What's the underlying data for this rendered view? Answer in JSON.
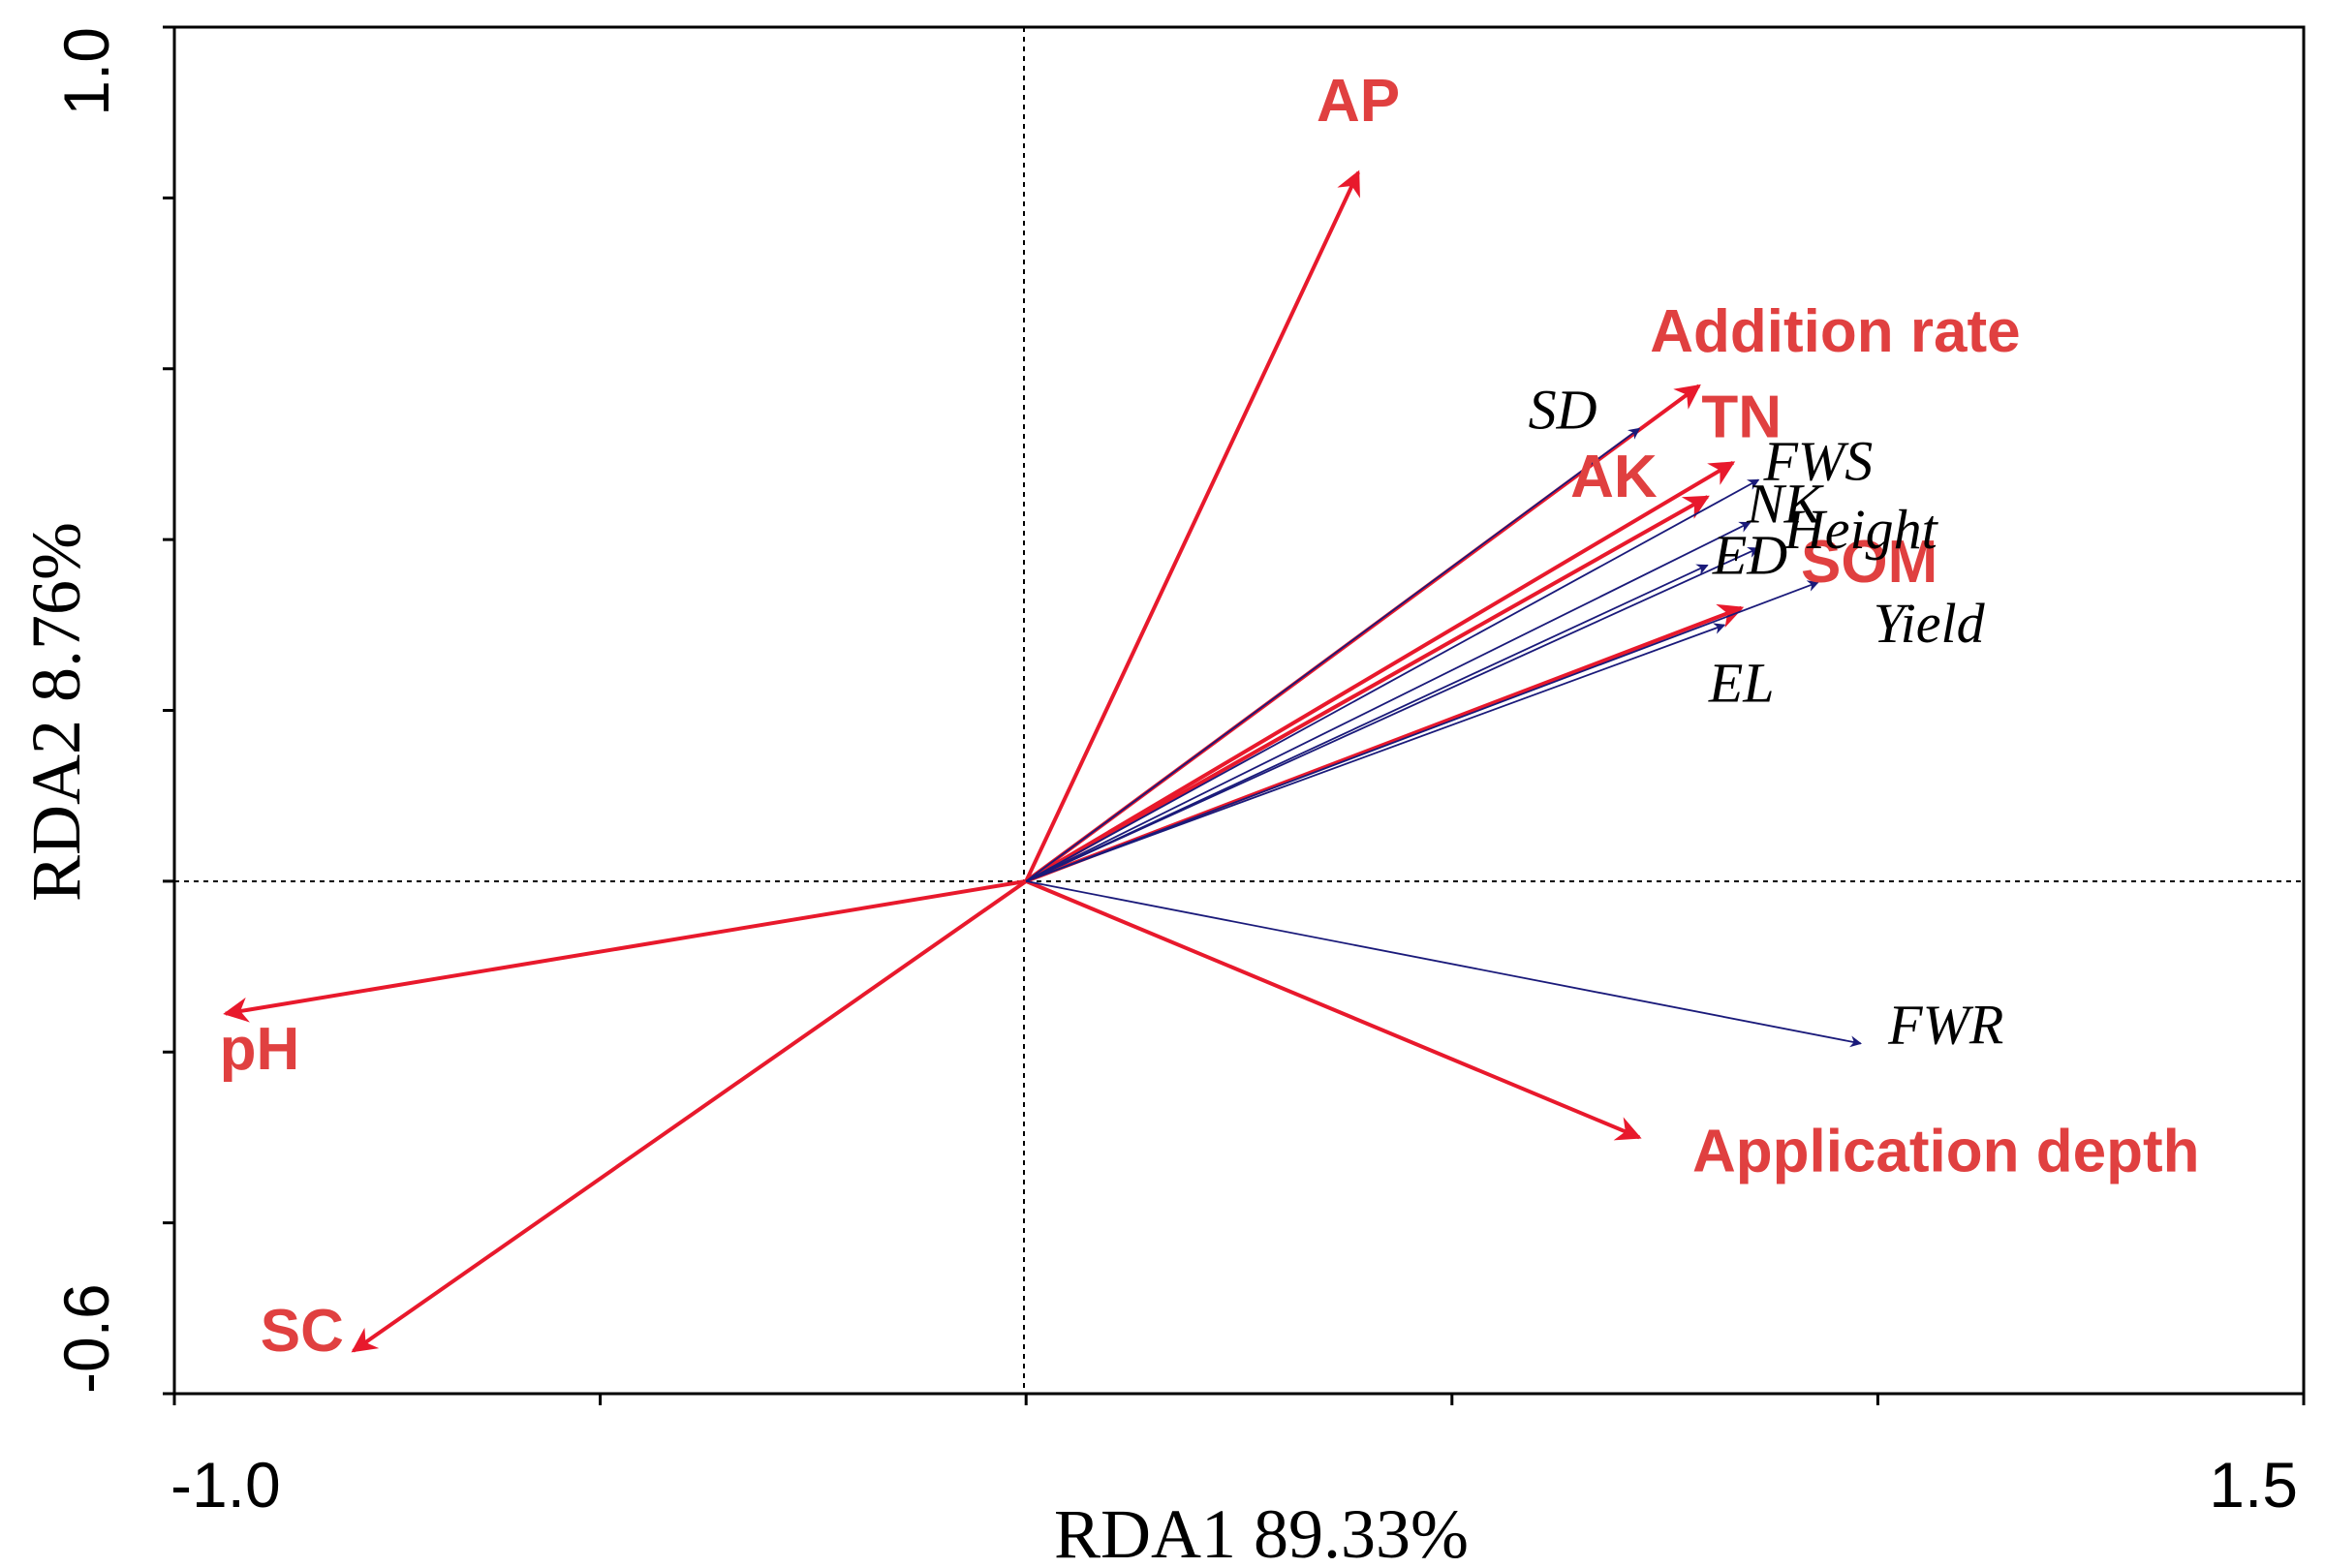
{
  "chart_data": {
    "type": "scatter",
    "subtype": "rda-biplot",
    "xlabel": "RDA1 89.33%",
    "ylabel": "RDA2 8.76%",
    "xlim": [
      -1.0,
      1.5
    ],
    "ylim": [
      -0.6,
      1.0
    ],
    "x_tick_labels": [
      "-1.0",
      "1.5"
    ],
    "y_tick_labels": [
      "1.0",
      "-0.6"
    ],
    "x_ticks": [
      -1.0,
      -0.5,
      0.0,
      0.5,
      1.0,
      1.5
    ],
    "y_ticks": [
      -0.6,
      -0.4,
      -0.2,
      0.0,
      0.2,
      0.4,
      0.6,
      0.8,
      1.0
    ],
    "reference_lines": {
      "x": 0.0,
      "y": 0.0,
      "style": "dotted"
    },
    "env_color": "#e8192c",
    "env_label_color": "#e04040",
    "response_color": "#1a1a7a",
    "series": [
      {
        "name": "environmental variables",
        "style": "bold-arrow",
        "vectors": [
          {
            "label": "AP",
            "x": 0.39,
            "y": 0.83,
            "label_pos": [
              0.39,
              0.89
            ]
          },
          {
            "label": "Addition rate",
            "x": 0.79,
            "y": 0.58,
            "label_pos": [
              0.95,
              0.62
            ]
          },
          {
            "label": "TN",
            "x": 0.83,
            "y": 0.49,
            "label_pos": [
              0.84,
              0.52
            ]
          },
          {
            "label": "AK",
            "x": 0.8,
            "y": 0.45,
            "label_pos": [
              0.69,
              0.45
            ]
          },
          {
            "label": "SOM",
            "x": 0.84,
            "y": 0.32,
            "label_pos": [
              0.99,
              0.35
            ]
          },
          {
            "label": "pH",
            "x": -0.94,
            "y": -0.155,
            "label_pos": [
              -0.9,
              -0.22
            ]
          },
          {
            "label": "SC",
            "x": -0.79,
            "y": -0.55,
            "label_pos": [
              -0.85,
              -0.55
            ]
          },
          {
            "label": "Application depth",
            "x": 0.72,
            "y": -0.3,
            "label_pos": [
              1.08,
              -0.34
            ]
          }
        ]
      },
      {
        "name": "response variables",
        "style": "thin-arrow",
        "vectors": [
          {
            "label": "SD",
            "x": 0.72,
            "y": 0.53,
            "label_pos": [
              0.63,
              0.53
            ]
          },
          {
            "label": "FWS",
            "x": 0.86,
            "y": 0.47,
            "label_pos": [
              0.93,
              0.47
            ]
          },
          {
            "label": "NK",
            "x": 0.85,
            "y": 0.42,
            "label_pos": [
              0.89,
              0.42
            ]
          },
          {
            "label": "Height",
            "x": 0.86,
            "y": 0.39,
            "label_pos": [
              0.98,
              0.39
            ]
          },
          {
            "label": "ED",
            "x": 0.8,
            "y": 0.37,
            "label_pos": [
              0.85,
              0.36
            ]
          },
          {
            "label": "Yield",
            "x": 0.93,
            "y": 0.35,
            "label_pos": [
              1.06,
              0.28
            ]
          },
          {
            "label": "EL",
            "x": 0.82,
            "y": 0.3,
            "label_pos": [
              0.84,
              0.21
            ]
          },
          {
            "label": "FWR",
            "x": 0.98,
            "y": -0.19,
            "label_pos": [
              1.08,
              -0.19
            ]
          }
        ]
      }
    ]
  }
}
